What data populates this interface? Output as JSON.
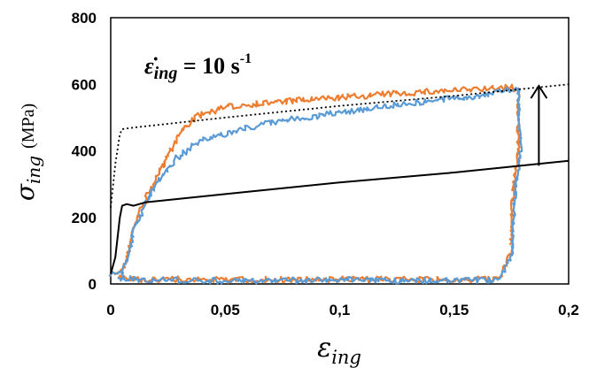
{
  "chart_data": {
    "type": "line",
    "title": "",
    "annotation": {
      "symbol": "ε̇",
      "subscript": "ing",
      "equals": " = 10 s",
      "superscript": "-1"
    },
    "xlabel": {
      "symbol": "ε",
      "subscript": "ing"
    },
    "ylabel": {
      "symbol": "σ",
      "subscript": "ing",
      "unit": "(MPa)"
    },
    "xlim": [
      0,
      0.2
    ],
    "ylim": [
      0,
      800
    ],
    "x_ticks": [
      {
        "value": 0,
        "label": "0"
      },
      {
        "value": 0.05,
        "label": "0,05"
      },
      {
        "value": 0.1,
        "label": "0,1"
      },
      {
        "value": 0.15,
        "label": "0,15"
      },
      {
        "value": 0.2,
        "label": "0,2"
      }
    ],
    "y_ticks": [
      {
        "value": 0,
        "label": "0"
      },
      {
        "value": 200,
        "label": "200"
      },
      {
        "value": 400,
        "label": "400"
      },
      {
        "value": 600,
        "label": "600"
      },
      {
        "value": 800,
        "label": "800"
      }
    ],
    "grid": false,
    "legend": "none",
    "series": [
      {
        "style": "solid",
        "color": "#000000",
        "x": [
          0,
          0.002,
          0.004,
          0.005,
          0.007,
          0.01,
          0.015,
          0.05,
          0.1,
          0.15,
          0.2
        ],
        "y": [
          30,
          80,
          200,
          235,
          240,
          235,
          245,
          270,
          305,
          335,
          370
        ]
      },
      {
        "style": "dotted",
        "color": "#000000",
        "x": [
          0,
          0.002,
          0.004,
          0.005,
          0.01,
          0.05,
          0.1,
          0.15,
          0.2
        ],
        "y": [
          230,
          360,
          450,
          465,
          470,
          500,
          535,
          565,
          600
        ]
      },
      {
        "style": "noisy",
        "color": "#ed7d31",
        "x": [
          0,
          0.005,
          0.008,
          0.01,
          0.015,
          0.02,
          0.025,
          0.03,
          0.035,
          0.04,
          0.05,
          0.06,
          0.07,
          0.08,
          0.1,
          0.12,
          0.14,
          0.16,
          0.175,
          0.178,
          0.178,
          0.176,
          0.175,
          0.175,
          0.17,
          0.15,
          0.1,
          0.05,
          0.01,
          0.003
        ],
        "y": [
          30,
          40,
          100,
          175,
          250,
          320,
          390,
          450,
          490,
          510,
          530,
          540,
          545,
          550,
          560,
          570,
          578,
          585,
          590,
          580,
          400,
          300,
          200,
          100,
          15,
          12,
          14,
          12,
          15,
          20
        ]
      },
      {
        "style": "noisy",
        "color": "#5b9bd5",
        "x": [
          0,
          0.005,
          0.008,
          0.01,
          0.015,
          0.02,
          0.025,
          0.03,
          0.035,
          0.04,
          0.05,
          0.06,
          0.07,
          0.08,
          0.1,
          0.12,
          0.14,
          0.16,
          0.175,
          0.178,
          0.179,
          0.177,
          0.176,
          0.175,
          0.17,
          0.15,
          0.1,
          0.05,
          0.01,
          0.003
        ],
        "y": [
          25,
          35,
          95,
          160,
          240,
          300,
          350,
          385,
          410,
          430,
          450,
          470,
          485,
          495,
          515,
          535,
          550,
          565,
          585,
          590,
          400,
          300,
          200,
          80,
          12,
          10,
          12,
          10,
          14,
          18
        ]
      }
    ],
    "arrow": {
      "x": 0.187,
      "y_from": 355,
      "y_to": 595,
      "color": "#000000"
    }
  }
}
